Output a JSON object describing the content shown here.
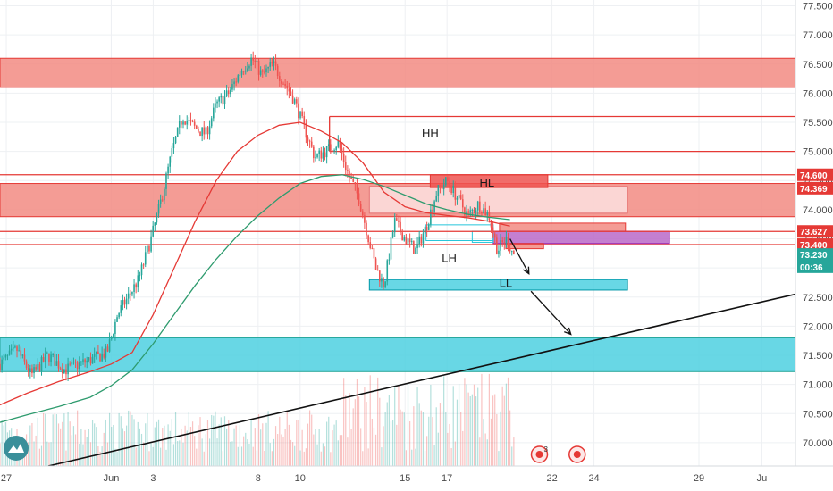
{
  "chart_data": {
    "type": "candlestick",
    "y_axis": {
      "range": [
        69.6,
        77.6
      ],
      "ticks": [
        "77.500",
        "77.000",
        "76.500",
        "76.000",
        "75.500",
        "75.000",
        "74.500",
        "74.000",
        "73.500",
        "73.000",
        "72.500",
        "72.000",
        "71.500",
        "71.000",
        "70.500",
        "70.000"
      ],
      "tick_values": [
        77.5,
        77.0,
        76.5,
        76.0,
        75.5,
        75.0,
        74.5,
        74.0,
        73.5,
        73.0,
        72.5,
        72.0,
        71.5,
        71.0,
        70.5,
        70.0
      ]
    },
    "x_axis": {
      "range_days": [
        -4.3,
        33.6
      ],
      "ticks": [
        {
          "label": "27",
          "day": -4
        },
        {
          "label": "Jun",
          "day": 1
        },
        {
          "label": "3",
          "day": 3
        },
        {
          "label": "8",
          "day": 8
        },
        {
          "label": "10",
          "day": 10
        },
        {
          "label": "15",
          "day": 15
        },
        {
          "label": "17",
          "day": 17
        },
        {
          "label": "22",
          "day": 22
        },
        {
          "label": "24",
          "day": 24
        },
        {
          "label": "29",
          "day": 29
        },
        {
          "label": "Ju",
          "day": 32
        }
      ]
    },
    "price_tags": [
      {
        "label": "74.600",
        "value": 74.6,
        "color": "#e53935"
      },
      {
        "label": "74.369",
        "value": 74.369,
        "color": "#e53935"
      },
      {
        "label": "73.627",
        "value": 73.627,
        "color": "#e53935"
      },
      {
        "label": "73.400",
        "value": 73.4,
        "color": "#e53935"
      },
      {
        "label": "73.230",
        "value": 73.23,
        "color": "#26a69a"
      },
      {
        "label": "00:36",
        "value": 73.02,
        "color": "#26a69a"
      }
    ],
    "zones": [
      {
        "y1": 76.6,
        "y2": 76.1,
        "d1": -4.3,
        "d2": 33.6,
        "fill": "#f28b82",
        "opacity": 1.0,
        "stroke": "#e53935"
      },
      {
        "y1": 74.45,
        "y2": 73.88,
        "d1": -4.3,
        "d2": 33.6,
        "fill": "#f28b82",
        "opacity": 1.0,
        "stroke": "#e53935"
      },
      {
        "y1": 71.8,
        "y2": 71.22,
        "d1": -4.3,
        "d2": 33.6,
        "fill": "#4dd0e1",
        "opacity": 1.0,
        "stroke": "#26a69a"
      },
      {
        "y1": 74.4,
        "y2": 73.94,
        "d1": 13.3,
        "d2": 25.6,
        "fill": "#fbe1df",
        "opacity": 1.0,
        "stroke": "#e57373"
      },
      {
        "y1": 74.6,
        "y2": 74.38,
        "d1": 16.2,
        "d2": 21.8,
        "fill": "#ef5350",
        "opacity": 1.0,
        "stroke": "#e53935"
      },
      {
        "y1": 73.77,
        "y2": 73.63,
        "d1": 19.5,
        "d2": 25.5,
        "fill": "#f28b82",
        "opacity": 1.0,
        "stroke": "#e53935"
      },
      {
        "y1": 73.63,
        "y2": 73.42,
        "d1": 19.2,
        "d2": 27.6,
        "fill": "#ba68c8",
        "opacity": 1.0,
        "stroke": "#9c27b0"
      },
      {
        "y1": 73.42,
        "y2": 73.33,
        "d1": 19.8,
        "d2": 21.6,
        "fill": "#f28b82",
        "opacity": 1.0,
        "stroke": "#e53935"
      },
      {
        "y1": 73.74,
        "y2": 73.47,
        "d1": 16.0,
        "d2": 19.2,
        "fill": "none",
        "opacity": 1.0,
        "stroke": "#26c6da"
      },
      {
        "y1": 73.63,
        "y2": 73.44,
        "d1": 18.2,
        "d2": 19.2,
        "fill": "none",
        "opacity": 1.0,
        "stroke": "#26c6da"
      },
      {
        "y1": 72.8,
        "y2": 72.62,
        "d1": 13.3,
        "d2": 25.6,
        "fill": "#4dd0e1",
        "opacity": 1.0,
        "stroke": "#0097a7"
      }
    ],
    "h_lines": [
      {
        "value": 75.6,
        "d1": 11.4,
        "d2": 33.6,
        "color": "#e53935"
      },
      {
        "value": 75.0,
        "d1": 11.4,
        "d2": 33.6,
        "color": "#e53935"
      },
      {
        "value": 74.6,
        "d1": -4.3,
        "d2": 33.6,
        "color": "#e53935"
      },
      {
        "value": 73.627,
        "d1": -4.3,
        "d2": 33.6,
        "color": "#e53935"
      },
      {
        "value": 73.4,
        "d1": -4.3,
        "d2": 33.6,
        "color": "#e53935"
      }
    ],
    "v_lines": [
      {
        "day": 11.4,
        "v1": 75.6,
        "v2": 75.0,
        "color": "#e53935"
      }
    ],
    "trendline": {
      "d1": -2.0,
      "v1": 69.6,
      "d2": 33.6,
      "v2": 72.55,
      "color": "#111111"
    },
    "arrows": [
      {
        "d1": 20.0,
        "v1": 73.5,
        "d2": 20.9,
        "v2": 72.9
      },
      {
        "d1": 21.0,
        "v1": 72.6,
        "d2": 22.9,
        "v2": 71.86
      }
    ],
    "annotations": [
      {
        "text": "HH",
        "day": 16.2,
        "value": 75.25
      },
      {
        "text": "HL",
        "day": 18.9,
        "value": 74.4
      },
      {
        "text": "LH",
        "day": 17.1,
        "value": 73.1
      },
      {
        "text": "LL",
        "day": 19.8,
        "value": 72.67
      }
    ],
    "ma_red": [
      [
        -4.3,
        70.65
      ],
      [
        -3,
        70.85
      ],
      [
        -1.5,
        71.05
      ],
      [
        0,
        71.22
      ],
      [
        1,
        71.35
      ],
      [
        2,
        71.55
      ],
      [
        3,
        72.2
      ],
      [
        4,
        73.0
      ],
      [
        5,
        73.8
      ],
      [
        6,
        74.5
      ],
      [
        7,
        75.0
      ],
      [
        8,
        75.28
      ],
      [
        9,
        75.45
      ],
      [
        10,
        75.5
      ],
      [
        11,
        75.35
      ],
      [
        12,
        75.15
      ],
      [
        13,
        74.8
      ],
      [
        14,
        74.3
      ],
      [
        15,
        74.05
      ],
      [
        16,
        73.95
      ],
      [
        17,
        73.9
      ],
      [
        18,
        73.86
      ],
      [
        19,
        73.8
      ],
      [
        20,
        73.72
      ]
    ],
    "ma_green": [
      [
        -4.3,
        70.35
      ],
      [
        -3,
        70.48
      ],
      [
        -1.5,
        70.62
      ],
      [
        0,
        70.78
      ],
      [
        1,
        70.98
      ],
      [
        2,
        71.25
      ],
      [
        3,
        71.7
      ],
      [
        4,
        72.2
      ],
      [
        5,
        72.7
      ],
      [
        6,
        73.15
      ],
      [
        7,
        73.55
      ],
      [
        8,
        73.9
      ],
      [
        9,
        74.2
      ],
      [
        10,
        74.45
      ],
      [
        11,
        74.57
      ],
      [
        12,
        74.6
      ],
      [
        13,
        74.52
      ],
      [
        14,
        74.4
      ],
      [
        15,
        74.25
      ],
      [
        16,
        74.1
      ],
      [
        17,
        74.0
      ],
      [
        18,
        73.92
      ],
      [
        19,
        73.87
      ],
      [
        20,
        73.83
      ]
    ],
    "price_path": [
      [
        -4.3,
        71.35
      ],
      [
        -3.5,
        71.6
      ],
      [
        -2.8,
        71.15
      ],
      [
        -2,
        71.5
      ],
      [
        -1.2,
        71.25
      ],
      [
        -0.5,
        71.35
      ],
      [
        0.2,
        71.45
      ],
      [
        0.8,
        71.55
      ],
      [
        1.3,
        72.2
      ],
      [
        1.8,
        72.5
      ],
      [
        2.3,
        72.8
      ],
      [
        2.9,
        73.5
      ],
      [
        3.4,
        74.2
      ],
      [
        3.9,
        75.0
      ],
      [
        4.4,
        75.6
      ],
      [
        5,
        75.4
      ],
      [
        5.5,
        75.3
      ],
      [
        6,
        75.8
      ],
      [
        6.6,
        76.0
      ],
      [
        7.2,
        76.4
      ],
      [
        7.7,
        76.6
      ],
      [
        8.2,
        76.3
      ],
      [
        8.7,
        76.5
      ],
      [
        9.2,
        76.2
      ],
      [
        9.7,
        75.9
      ],
      [
        10.2,
        75.4
      ],
      [
        10.7,
        74.9
      ],
      [
        11.2,
        75.0
      ],
      [
        11.8,
        75.15
      ],
      [
        12.3,
        74.6
      ],
      [
        12.8,
        74.2
      ],
      [
        13.2,
        73.6
      ],
      [
        13.6,
        73.0
      ],
      [
        14,
        72.7
      ],
      [
        14.5,
        73.8
      ],
      [
        15,
        73.5
      ],
      [
        15.5,
        73.3
      ],
      [
        16,
        73.7
      ],
      [
        16.5,
        74.3
      ],
      [
        17,
        74.5
      ],
      [
        17.5,
        74.2
      ],
      [
        18,
        73.9
      ],
      [
        18.5,
        74.1
      ],
      [
        19,
        73.9
      ],
      [
        19.4,
        73.3
      ],
      [
        19.8,
        73.5
      ],
      [
        20.2,
        73.23
      ]
    ],
    "volume": {
      "baseline": 69.6,
      "scale_top": 71.2
    }
  },
  "watermark": {
    "icon": "tradingview-logo"
  },
  "badges": [
    {
      "icon": "event-earnings-icon",
      "count": "3",
      "day": 21.4
    },
    {
      "icon": "event-dividend-icon",
      "day": 23.2
    }
  ]
}
